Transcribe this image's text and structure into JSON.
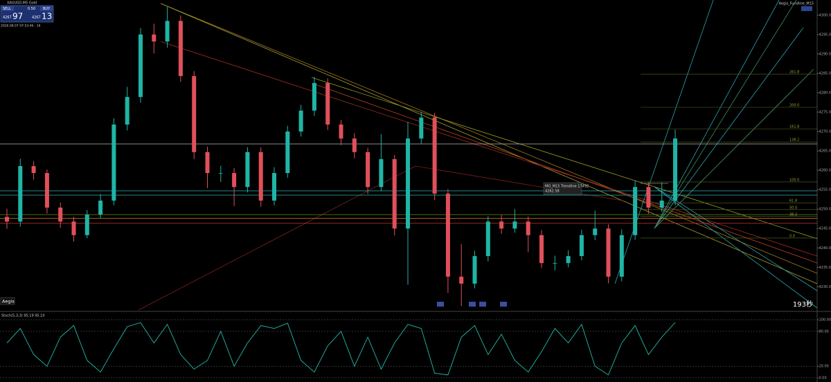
{
  "panel": {
    "symbol": "XAUUSD,M5 Gold",
    "sell": "SELL",
    "lot": "0.50",
    "buy": "BUY",
    "bid_small": "4267",
    "bid_big": "97",
    "ask_small": "4267",
    "ask_big": "13",
    "timestamp": "2026.08.07 07:53:46 : 16",
    "brand": "Aegis",
    "indicator_name": "Aegis_Fundline_M15",
    "countdown": "193秒",
    "trendline_label": "MO_M15 Trendline 17492",
    "trendline_price": "4262.58"
  },
  "chart_data": [
    {
      "type": "candlestick",
      "open": [
        4248.0,
        4246.8,
        4261.1,
        4259.3,
        4250.4,
        4246.8,
        4243.3,
        4248.6,
        4252.2,
        4271.8,
        4278.9,
        4295.0,
        4293.2,
        4298.5,
        4284.3,
        4264.7,
        4259.3,
        4259.3,
        4255.7,
        4264.7,
        4252.2,
        4259.3,
        4270.0,
        4275.4,
        4282.5,
        4271.8,
        4268.2,
        4264.7,
        4255.7,
        4262.9,
        4245.0,
        4268.2,
        4273.6,
        4254.0,
        4232.6,
        4230.8,
        4237.9,
        4246.8,
        4245.0,
        4246.8,
        4243.3,
        4236.1,
        4236.1,
        4237.9,
        4243.3,
        4245.0,
        4232.6,
        4243.3,
        4255.7,
        4250.4,
        4252.2
      ],
      "high": [
        4250.1,
        4263.0,
        4262.4,
        4260.2,
        4251.7,
        4248.0,
        4249.8,
        4253.9,
        4273.4,
        4281.5,
        4296.7,
        4297.8,
        4302.1,
        4299.9,
        4285.6,
        4266.1,
        4261.2,
        4260.6,
        4266.0,
        4265.9,
        4260.8,
        4271.5,
        4276.9,
        4284.1,
        4283.7,
        4273.0,
        4269.6,
        4265.8,
        4269.3,
        4264.0,
        4272.5,
        4275.1,
        4274.8,
        4255.2,
        4241.0,
        4239.3,
        4248.2,
        4248.5,
        4250.0,
        4248.1,
        4244.6,
        4238.0,
        4239.4,
        4244.7,
        4249.6,
        4246.1,
        4244.8,
        4257.4,
        4257.0,
        4256.9,
        4270.5
      ],
      "low": [
        4244.9,
        4245.5,
        4257.6,
        4248.9,
        4245.2,
        4241.6,
        4242.5,
        4247.7,
        4251.0,
        4270.3,
        4277.4,
        4290.1,
        4291.6,
        4282.8,
        4262.9,
        4255.4,
        4257.0,
        4250.8,
        4254.3,
        4250.6,
        4251.0,
        4258.1,
        4268.7,
        4274.0,
        4270.4,
        4266.5,
        4263.1,
        4253.9,
        4254.6,
        4243.2,
        4230.5,
        4266.9,
        4252.3,
        4228.4,
        4225.0,
        4229.6,
        4236.5,
        4243.6,
        4243.9,
        4238.9,
        4234.8,
        4234.2,
        4235.0,
        4236.8,
        4242.0,
        4230.9,
        4231.4,
        4242.1,
        4248.8,
        4249.3,
        4251.0
      ],
      "close": [
        4246.8,
        4261.1,
        4259.3,
        4250.4,
        4246.8,
        4243.3,
        4248.6,
        4252.2,
        4271.8,
        4278.9,
        4295.0,
        4293.2,
        4298.5,
        4284.3,
        4264.7,
        4259.3,
        4259.3,
        4255.7,
        4264.7,
        4252.2,
        4259.3,
        4270.0,
        4275.4,
        4282.5,
        4271.8,
        4268.2,
        4264.7,
        4255.7,
        4262.9,
        4245.0,
        4268.2,
        4273.6,
        4254.0,
        4232.6,
        4230.8,
        4237.9,
        4246.8,
        4245.0,
        4246.8,
        4243.3,
        4236.1,
        4236.1,
        4237.9,
        4243.3,
        4245.0,
        4232.6,
        4243.3,
        4255.7,
        4250.4,
        4252.2,
        4268.2
      ],
      "up_color": "#1fb5a6",
      "down_color": "#e0505a",
      "ylim": [
        4224,
        4303
      ],
      "yticks": [
        {
          "value": 4230,
          "label": "4230.00"
        },
        {
          "value": 4235,
          "label": "4235.00"
        },
        {
          "value": 4240,
          "label": "4240.00"
        },
        {
          "value": 4245,
          "label": "4245.00"
        },
        {
          "value": 4250,
          "label": "4250.00"
        },
        {
          "value": 4255,
          "label": "4255.00"
        },
        {
          "value": 4260,
          "label": "4260.00"
        },
        {
          "value": 4265,
          "label": "4265.00"
        },
        {
          "value": 4270,
          "label": "4270.00"
        },
        {
          "value": 4275,
          "label": "4275.00"
        },
        {
          "value": 4280,
          "label": "4280.00"
        },
        {
          "value": 4285,
          "label": "4285.00"
        },
        {
          "value": 4290,
          "label": "4290.00"
        },
        {
          "value": 4295,
          "label": "4295.00"
        },
        {
          "value": 4300,
          "label": "4300.00"
        }
      ],
      "hlines": [
        {
          "value": 4266.8,
          "color": "#bbbbbb"
        },
        {
          "value": 4254.7,
          "color": "#2bb5b5"
        },
        {
          "value": 4253.6,
          "color": "#2bb5b5"
        },
        {
          "value": 4248.6,
          "color": "#7fa020"
        },
        {
          "value": 4247.6,
          "color": "#d08020"
        },
        {
          "value": 4246.4,
          "color": "#c03030"
        }
      ],
      "fib_levels": [
        {
          "label": "261.8",
          "value": 4284.8
        },
        {
          "label": "200.0",
          "value": 4276.25
        },
        {
          "label": "161.8",
          "value": 4270.7
        },
        {
          "label": "138.2",
          "value": 4267.3
        },
        {
          "label": "100.0",
          "value": 4257.0
        },
        {
          "label": "61.8",
          "value": 4251.6
        },
        {
          "label": "50.0",
          "value": 4249.9
        },
        {
          "label": "38.2",
          "value": 4248.1
        },
        {
          "label": "0.0",
          "value": 4242.55
        }
      ]
    },
    {
      "type": "line",
      "title": "Stoch(5,3,3) 95.19 95.10",
      "color": "#1fa89a",
      "values": [
        60,
        85,
        40,
        20,
        70,
        90,
        30,
        10,
        50,
        88,
        95,
        60,
        92,
        40,
        15,
        30,
        80,
        20,
        60,
        90,
        85,
        94,
        30,
        10,
        55,
        80,
        20,
        70,
        15,
        60,
        92,
        85,
        8,
        5,
        70,
        90,
        40,
        75,
        30,
        10,
        45,
        85,
        60,
        92,
        20,
        5,
        60,
        90,
        40,
        70,
        95.19
      ],
      "ylim": [
        0,
        100
      ],
      "yticks": [
        {
          "value": 0,
          "label": "0.00"
        },
        {
          "value": 20,
          "label": "20.00"
        },
        {
          "value": 80,
          "label": "80.00"
        },
        {
          "value": 100,
          "label": "100.00"
        }
      ]
    }
  ]
}
